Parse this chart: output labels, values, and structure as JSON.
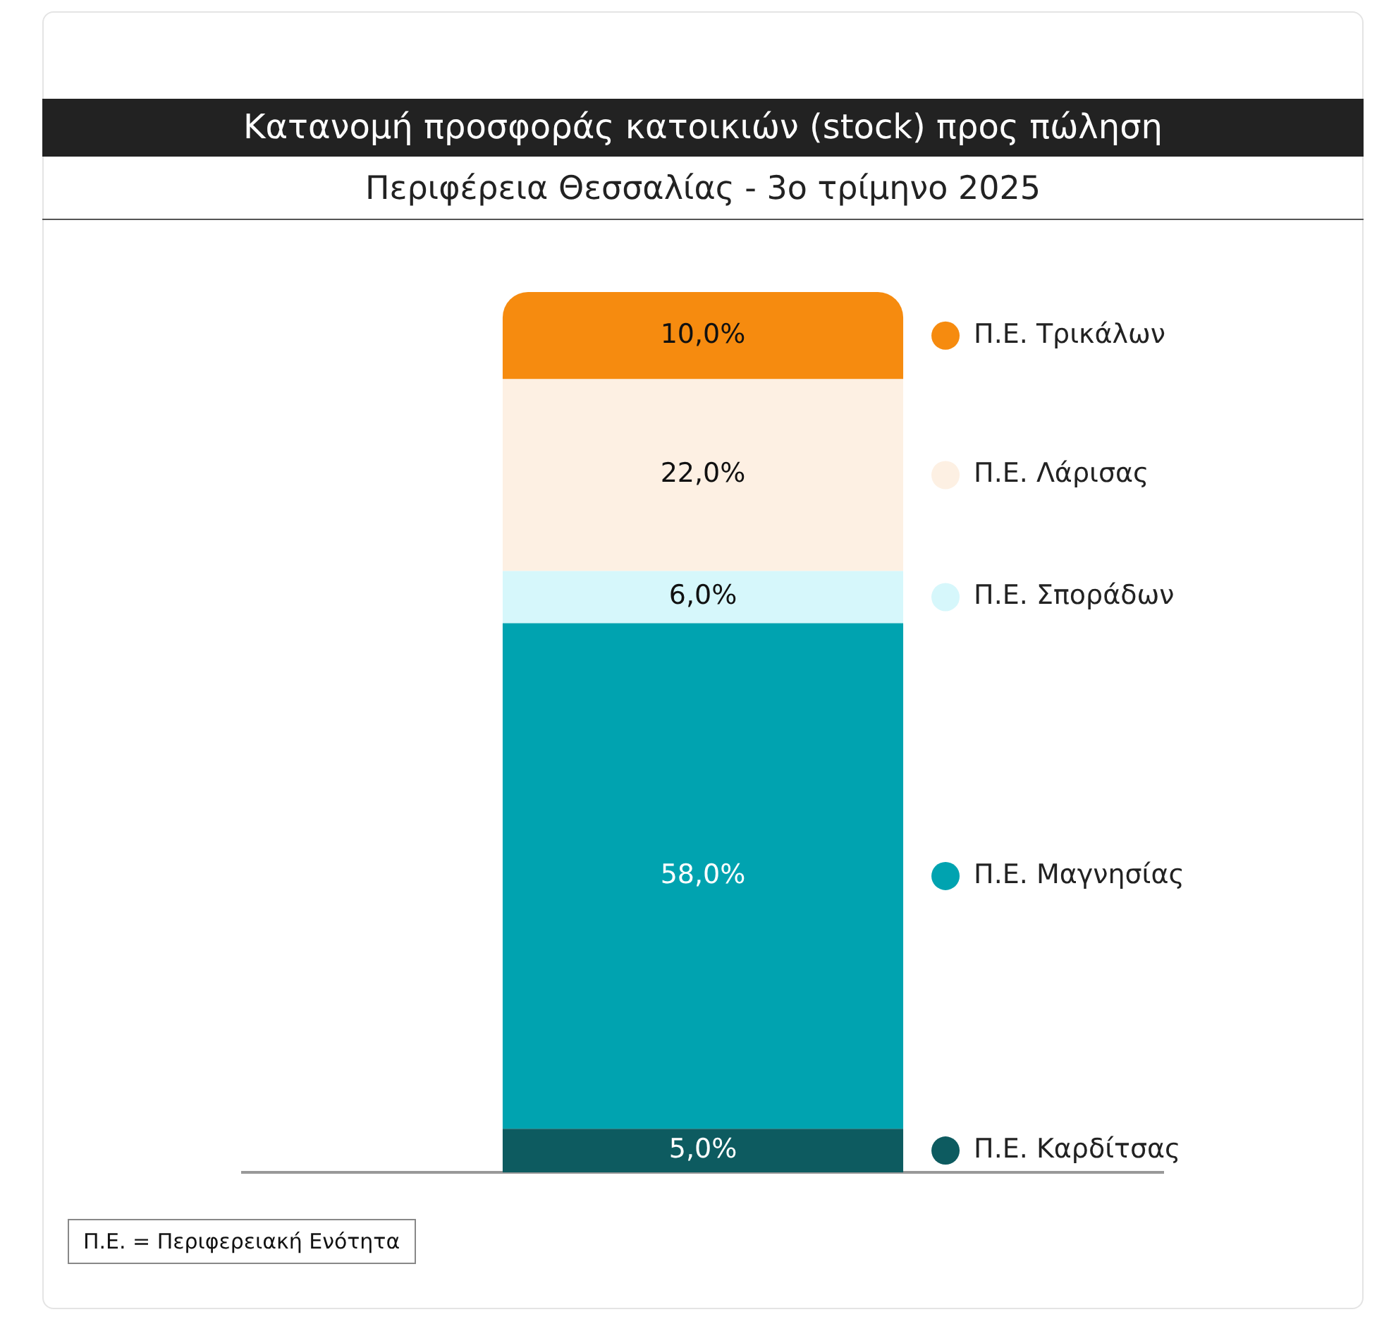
{
  "chart_data": {
    "type": "bar",
    "stacked": true,
    "title": "Κατανομή προσφοράς κατοικιών (stock) προς πώληση",
    "subtitle": "Περιφέρεια Θεσσαλίας - 3ο τρίμηνο 2025",
    "categories": [
      null
    ],
    "legend": "right",
    "grid": false,
    "tick_labels": false,
    "series": [
      {
        "name": "Π.Ε. Καρδίτσας",
        "color": "#0d5b60",
        "values": [
          5.0
        ],
        "value_labels": [
          "5,0%"
        ]
      },
      {
        "name": "Π.Ε. Μαγνησίας",
        "color": "#00a3b0",
        "values": [
          58.0
        ],
        "value_labels": [
          "58,0%"
        ]
      },
      {
        "name": "Π.Ε. Σποράδων",
        "color": "#d6f7fb",
        "values": [
          6.0
        ],
        "value_labels": [
          "6,0%"
        ]
      },
      {
        "name": "Π.Ε. Λάρισας",
        "color": "#fdf0e3",
        "values": [
          22.0
        ],
        "value_labels": [
          "22,0%"
        ]
      },
      {
        "name": "Π.Ε. Τρικάλων",
        "color": "#f68b0f",
        "values": [
          10.0
        ],
        "value_labels": [
          "10,0%"
        ]
      }
    ],
    "annotations": [
      "Π.Ε. = Περιφερειακή Ενότητα"
    ]
  }
}
